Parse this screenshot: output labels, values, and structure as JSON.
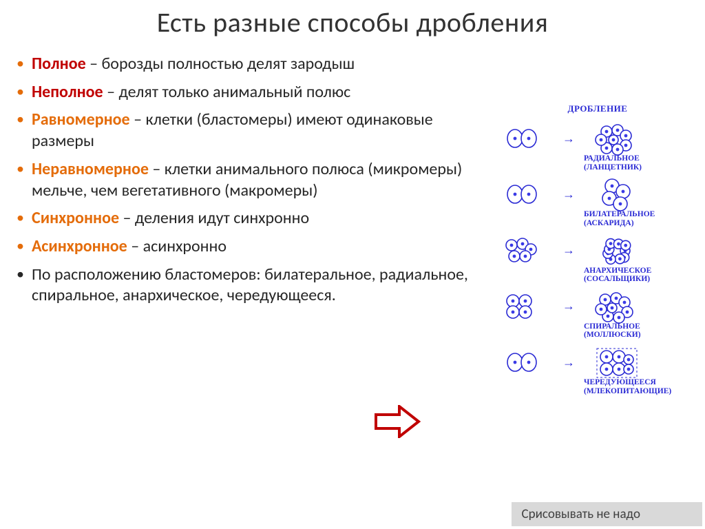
{
  "title": "Есть разные способы дробления",
  "bullets": [
    {
      "term": "Полное",
      "term_color": "t-red",
      "bullet_color": "b-orange",
      "rest": " – борозды полностью делят зародыш"
    },
    {
      "term": "Неполное",
      "term_color": "t-red",
      "bullet_color": "b-orange",
      "rest": " – делят только анимальный полюс"
    },
    {
      "term": "Равномерное",
      "term_color": "t-orange",
      "bullet_color": "b-orange",
      "rest": " – клетки (бластомеры) имеют одинаковые размеры"
    },
    {
      "term": "Неравномерное",
      "term_color": "t-orange",
      "bullet_color": "b-orange",
      "rest": " – клетки анимального полюса (микромеры) мельче, чем вегетативного (макромеры)"
    },
    {
      "term": "Синхронное",
      "term_color": "t-orange",
      "bullet_color": "b-orange",
      "rest": " – деления идут синхронно"
    },
    {
      "term": "Асинхронное",
      "term_color": "t-orange",
      "bullet_color": "b-orange",
      "rest": " – асинхронно"
    },
    {
      "term": "",
      "term_color": "",
      "bullet_color": "b-black",
      "rest": "По расположению бластомеров: билатеральное, радиальное,    спиральное, анархическое, чередующееся."
    }
  ],
  "diagram": {
    "heading": "ДРОБЛЕНИЕ",
    "cell_stroke": "#2a2ad4",
    "nucleus_fill": "#3a3ae6",
    "rows": [
      {
        "left_cells": 2,
        "right_cells": 8,
        "right_style": "radial",
        "label": "РАДИАЛЬНОЕ (ЛАНЦЕТНИК)"
      },
      {
        "left_cells": 2,
        "right_cells": 4,
        "right_style": "bilateral",
        "label": "БИЛАТЕРАЛЬНОЕ (АСКАРИДА)"
      },
      {
        "left_cells": 5,
        "right_cells": 9,
        "right_style": "anarchic",
        "label": "АНАРХИЧЕСКОЕ (СОСАЛЬЩИКИ)"
      },
      {
        "left_cells": 4,
        "right_cells": 8,
        "right_style": "spiral",
        "label": "СПИРАЛЬНОЕ (МОЛЛЮСКИ)"
      },
      {
        "left_cells": 2,
        "right_cells": 6,
        "right_style": "alternating",
        "label": "ЧЕРЕДУЮЩЕЕСЯ (МЛЕКОПИТАЮЩИЕ)"
      }
    ]
  },
  "arrow": {
    "stroke": "#c00000",
    "width": 70,
    "height": 48
  },
  "footer_note": "Срисовывать не надо"
}
